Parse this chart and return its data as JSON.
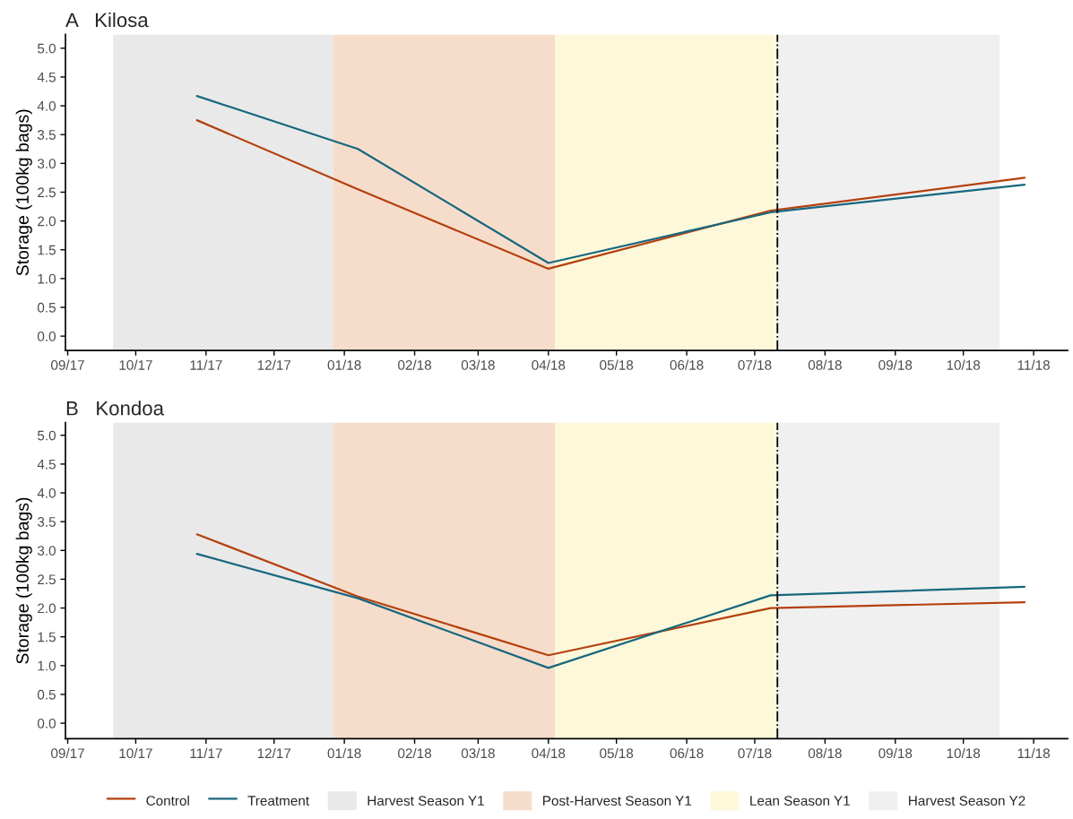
{
  "chart_data": [
    {
      "type": "line",
      "title": "A   Kilosa",
      "ylabel": "Storage (100kg bags)",
      "x": [
        "2017-10-28",
        "2018-01-07",
        "2018-04-01",
        "2018-07-08",
        "2018-10-28"
      ],
      "series": [
        {
          "color": "#b5400e",
          "values": [
            3.75,
            2.55,
            1.17,
            2.18,
            2.75
          ]
        },
        {
          "color": "#17677f",
          "values": [
            4.17,
            3.25,
            1.27,
            2.15,
            2.63
          ]
        }
      ],
      "bands": [
        {
          "axis": "x",
          "from": "2017-09-21",
          "to": "2017-12-27",
          "color": "#e9e9e9"
        },
        {
          "axis": "x",
          "from": "2017-12-27",
          "to": "2018-04-04",
          "color": "#f6ddcb"
        },
        {
          "axis": "x",
          "from": "2018-04-04",
          "to": "2018-07-11",
          "color": "#fcf8d9"
        },
        {
          "axis": "x",
          "from": "2018-07-11",
          "to": "2018-10-17",
          "color": "#f0f0f0"
        }
      ],
      "ref_lines": [
        {
          "axis": "x",
          "value": "2018-07-11",
          "color": "#000000",
          "line_style": "dashdot"
        }
      ],
      "xlim": [
        "2017-08-31",
        "2018-11-16"
      ],
      "xticks": [
        {
          "value": "2017-09-01",
          "label": "09/17"
        },
        {
          "value": "2017-10-01",
          "label": "10/17"
        },
        {
          "value": "2017-11-01",
          "label": "11/17"
        },
        {
          "value": "2017-12-01",
          "label": "12/17"
        },
        {
          "value": "2018-01-01",
          "label": "01/18"
        },
        {
          "value": "2018-02-01",
          "label": "02/18"
        },
        {
          "value": "2018-03-01",
          "label": "03/18"
        },
        {
          "value": "2018-04-01",
          "label": "04/18"
        },
        {
          "value": "2018-05-01",
          "label": "05/18"
        },
        {
          "value": "2018-06-01",
          "label": "06/18"
        },
        {
          "value": "2018-07-01",
          "label": "07/18"
        },
        {
          "value": "2018-08-01",
          "label": "08/18"
        },
        {
          "value": "2018-09-01",
          "label": "09/18"
        },
        {
          "value": "2018-10-01",
          "label": "10/18"
        },
        {
          "value": "2018-11-01",
          "label": "11/18"
        }
      ],
      "ylim": [
        -0.25,
        5.24
      ],
      "yticks": [
        {
          "value": 0,
          "label": "0.0"
        },
        {
          "value": 0.5,
          "label": "0.5"
        },
        {
          "value": 1,
          "label": "1.0"
        },
        {
          "value": 1.5,
          "label": "1.5"
        },
        {
          "value": 2,
          "label": "2.0"
        },
        {
          "value": 2.5,
          "label": "2.5"
        },
        {
          "value": 3,
          "label": "3.0"
        },
        {
          "value": 3.5,
          "label": "3.5"
        },
        {
          "value": 4,
          "label": "4.0"
        },
        {
          "value": 4.5,
          "label": "4.5"
        },
        {
          "value": 5,
          "label": "5.0"
        }
      ],
      "grid": false
    },
    {
      "type": "line",
      "title": "B   Kondoa",
      "ylabel": "Storage (100kg bags)",
      "x": [
        "2017-10-28",
        "2018-01-07",
        "2018-04-01",
        "2018-07-08",
        "2018-10-28"
      ],
      "series": [
        {
          "name": "Control",
          "color": "#b5400e",
          "values": [
            3.28,
            2.2,
            1.18,
            2.0,
            2.1
          ]
        },
        {
          "name": "Treatment",
          "color": "#17677f",
          "values": [
            2.94,
            2.17,
            0.96,
            2.22,
            2.37
          ]
        }
      ],
      "bands": [
        {
          "axis": "x",
          "from": "2017-09-21",
          "to": "2017-12-27",
          "label": "Harvest Season Y1",
          "color": "#e9e9e9"
        },
        {
          "axis": "x",
          "from": "2017-12-27",
          "to": "2018-04-04",
          "label": "Post-Harvest Season Y1",
          "color": "#f6ddcb"
        },
        {
          "axis": "x",
          "from": "2018-04-04",
          "to": "2018-07-11",
          "label": "Lean Season Y1",
          "color": "#fcf8d9"
        },
        {
          "axis": "x",
          "from": "2018-07-11",
          "to": "2018-10-17",
          "label": "Harvest Season Y2",
          "color": "#f0f0f0"
        }
      ],
      "ref_lines": [
        {
          "axis": "x",
          "value": "2018-07-11",
          "color": "#000000",
          "line_style": "dashdot"
        }
      ],
      "xlim": [
        "2017-08-31",
        "2018-11-16"
      ],
      "xticks": [
        {
          "value": "2017-09-01",
          "label": "09/17"
        },
        {
          "value": "2017-10-01",
          "label": "10/17"
        },
        {
          "value": "2017-11-01",
          "label": "11/17"
        },
        {
          "value": "2017-12-01",
          "label": "12/17"
        },
        {
          "value": "2018-01-01",
          "label": "01/18"
        },
        {
          "value": "2018-02-01",
          "label": "02/18"
        },
        {
          "value": "2018-03-01",
          "label": "03/18"
        },
        {
          "value": "2018-04-01",
          "label": "04/18"
        },
        {
          "value": "2018-05-01",
          "label": "05/18"
        },
        {
          "value": "2018-06-01",
          "label": "06/18"
        },
        {
          "value": "2018-07-01",
          "label": "07/18"
        },
        {
          "value": "2018-08-01",
          "label": "08/18"
        },
        {
          "value": "2018-09-01",
          "label": "09/18"
        },
        {
          "value": "2018-10-01",
          "label": "10/18"
        },
        {
          "value": "2018-11-01",
          "label": "11/18"
        }
      ],
      "ylim": [
        -0.27,
        5.22
      ],
      "yticks": [
        {
          "value": 0,
          "label": "0.0"
        },
        {
          "value": 0.5,
          "label": "0.5"
        },
        {
          "value": 1,
          "label": "1.0"
        },
        {
          "value": 1.5,
          "label": "1.5"
        },
        {
          "value": 2,
          "label": "2.0"
        },
        {
          "value": 2.5,
          "label": "2.5"
        },
        {
          "value": 3,
          "label": "3.0"
        },
        {
          "value": 3.5,
          "label": "3.5"
        },
        {
          "value": 4,
          "label": "4.0"
        },
        {
          "value": 4.5,
          "label": "4.5"
        },
        {
          "value": 5,
          "label": "5.0"
        }
      ],
      "grid": false,
      "legend": "bottom"
    }
  ]
}
